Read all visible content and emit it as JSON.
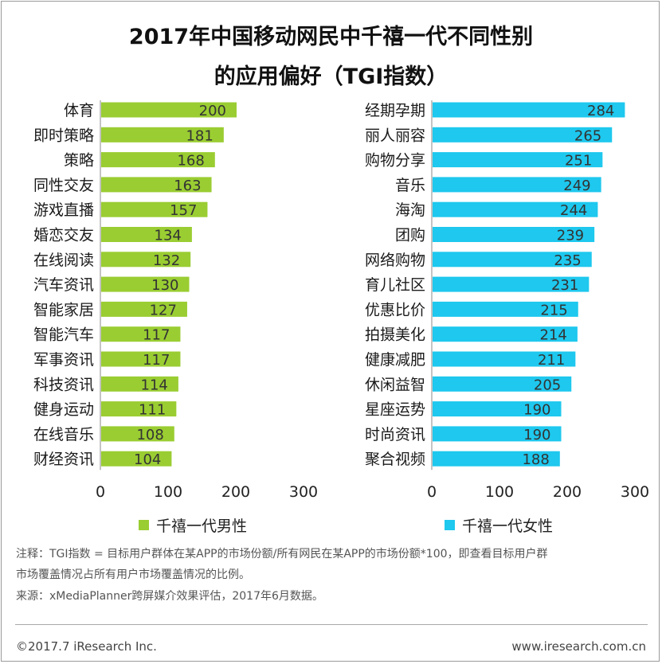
{
  "title_line1": "2017年中国移动网民中千禧一代不同性别",
  "title_line2": "的应用偏好（TGI指数）",
  "colors": {
    "male": "#9ACD32",
    "female": "#1EC8EE"
  },
  "chart_data": [
    {
      "type": "bar",
      "orientation": "horizontal",
      "series_name": "千禧一代男性",
      "categories": [
        "体育",
        "即时策略",
        "策略",
        "同性交友",
        "游戏直播",
        "婚恋交友",
        "在线阅读",
        "汽车资讯",
        "智能家居",
        "智能汽车",
        "军事资讯",
        "科技资讯",
        "健身运动",
        "在线音乐",
        "财经资讯"
      ],
      "values": [
        200,
        181,
        168,
        163,
        157,
        134,
        132,
        130,
        127,
        117,
        117,
        114,
        111,
        108,
        104
      ],
      "xlim": [
        0,
        300
      ],
      "ticks": [
        0,
        100,
        200,
        300
      ],
      "grid": false,
      "legend": "bottom"
    },
    {
      "type": "bar",
      "orientation": "horizontal",
      "series_name": "千禧一代女性",
      "categories": [
        "经期孕期",
        "丽人丽容",
        "购物分享",
        "音乐",
        "海淘",
        "团购",
        "网络购物",
        "育儿社区",
        "优惠比价",
        "拍摄美化",
        "健康减肥",
        "休闲益智",
        "星座运势",
        "时尚资讯",
        "聚合视频"
      ],
      "values": [
        284,
        265,
        251,
        249,
        244,
        239,
        235,
        231,
        215,
        214,
        211,
        205,
        190,
        190,
        188
      ],
      "xlim": [
        0,
        300
      ],
      "ticks": [
        0,
        100,
        200,
        300
      ],
      "grid": false,
      "legend": "bottom"
    }
  ],
  "note_line1": "注释：TGI指数 = 目标用户群体在某APP的市场份额/所有网民在某APP的市场份额*100，即查看目标用户群",
  "note_line2": "市场覆盖情况占所有用户市场覆盖情况的比例。",
  "source": "来源：xMediaPlanner跨屏媒介效果评估，2017年6月数据。",
  "footer_left": "©2017.7 iResearch Inc.",
  "footer_right": "www.iresearch.com.cn"
}
